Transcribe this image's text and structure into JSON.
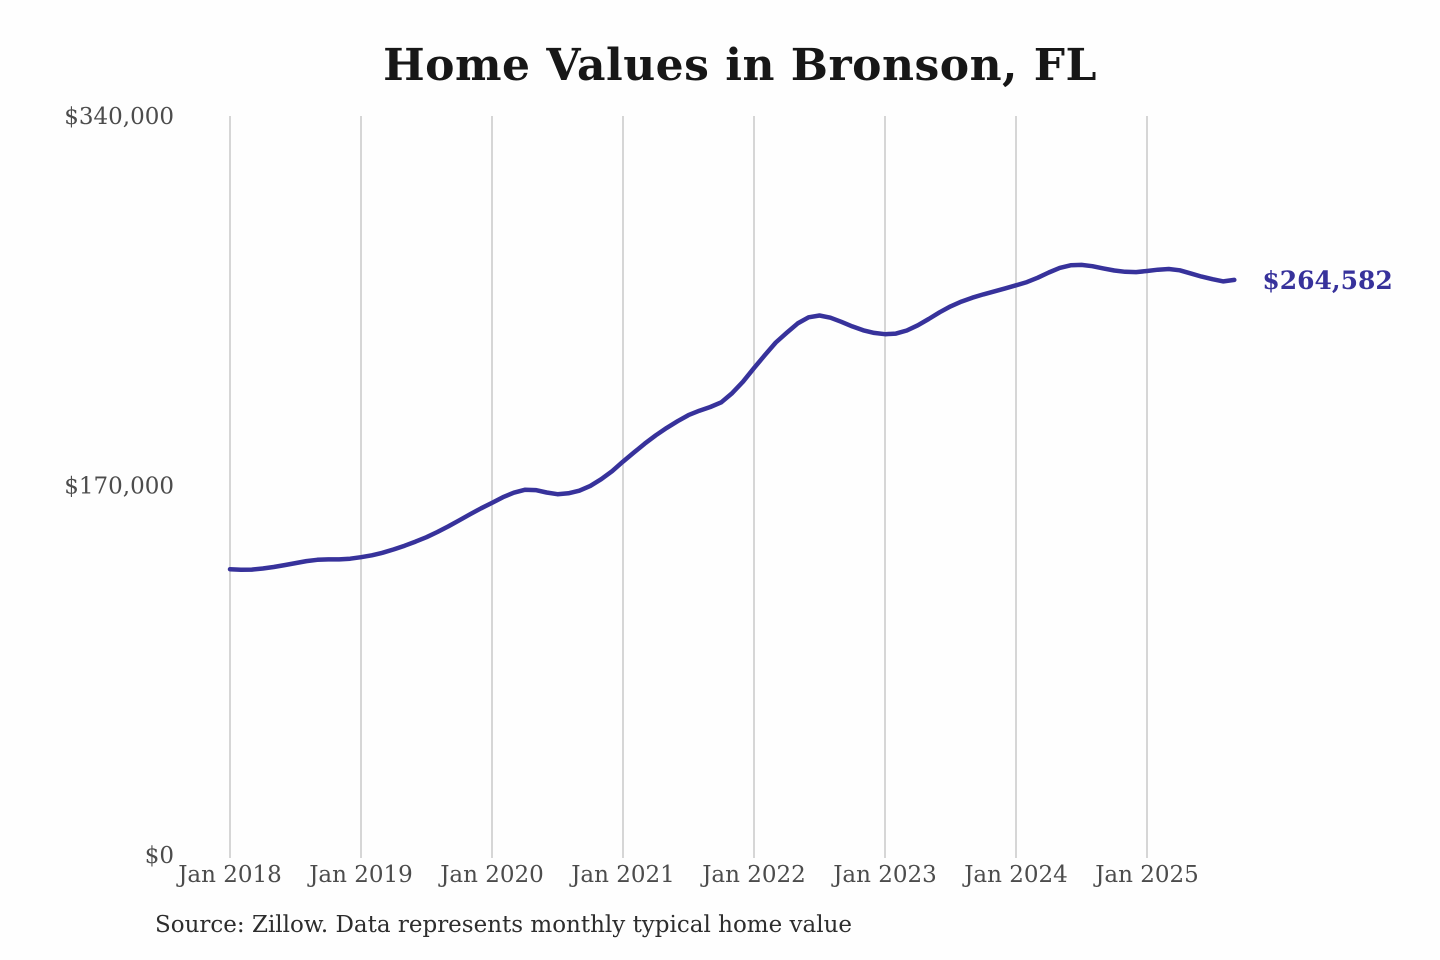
{
  "title": "Home Values in Bronson, FL",
  "source_note": "Source: Zillow. Data represents monthly typical home value",
  "end_label": "$264,582",
  "colors": {
    "line": "#37329b",
    "end_label": "#37329b",
    "grid": "#c9c9c9",
    "axis_text": "#4c4c4c",
    "title_text": "#171717",
    "source_text": "#2d2d2d",
    "background": "#fefefe"
  },
  "chart_data": {
    "type": "line",
    "title": "Home Values in Bronson, FL",
    "x_unit": "month",
    "x_start": "Jan 2018",
    "x_end": "Sep 2025",
    "ylim": [
      0,
      340000
    ],
    "grid": "vertical-only",
    "legend": false,
    "y_ticks": [
      {
        "label": "$0",
        "value": 0
      },
      {
        "label": "$170,000",
        "value": 170000
      },
      {
        "label": "$340,000",
        "value": 340000
      }
    ],
    "x_ticks": [
      {
        "label": "Jan 2018",
        "month_index": 0
      },
      {
        "label": "Jan 2019",
        "month_index": 12
      },
      {
        "label": "Jan 2020",
        "month_index": 24
      },
      {
        "label": "Jan 2021",
        "month_index": 36
      },
      {
        "label": "Jan 2022",
        "month_index": 48
      },
      {
        "label": "Jan 2023",
        "month_index": 60
      },
      {
        "label": "Jan 2024",
        "month_index": 72
      },
      {
        "label": "Jan 2025",
        "month_index": 84
      }
    ],
    "series": [
      {
        "name": "Typical home value",
        "values": [
          131500,
          131200,
          131300,
          131800,
          132500,
          133400,
          134300,
          135200,
          135800,
          136000,
          136000,
          136300,
          137000,
          137900,
          139100,
          140600,
          142300,
          144200,
          146200,
          148600,
          151200,
          154000,
          156800,
          159500,
          162000,
          164600,
          166700,
          168000,
          167900,
          166800,
          166000,
          166400,
          167600,
          169800,
          172900,
          176600,
          181000,
          185200,
          189300,
          193100,
          196500,
          199600,
          202400,
          204400,
          206100,
          208300,
          212500,
          217800,
          224000,
          230000,
          235800,
          240300,
          244600,
          247400,
          248200,
          247200,
          245300,
          243200,
          241400,
          240200,
          239600,
          239900,
          241300,
          243700,
          246600,
          249700,
          252400,
          254600,
          256400,
          257900,
          259300,
          260700,
          262100,
          263600,
          265600,
          268000,
          270100,
          271300,
          271500,
          270900,
          269900,
          268900,
          268300,
          268200,
          268700,
          269300,
          269600,
          269000,
          267600,
          266100,
          264900,
          263900,
          264582
        ]
      }
    ],
    "final_value": 264582,
    "final_value_label": "$264,582"
  }
}
